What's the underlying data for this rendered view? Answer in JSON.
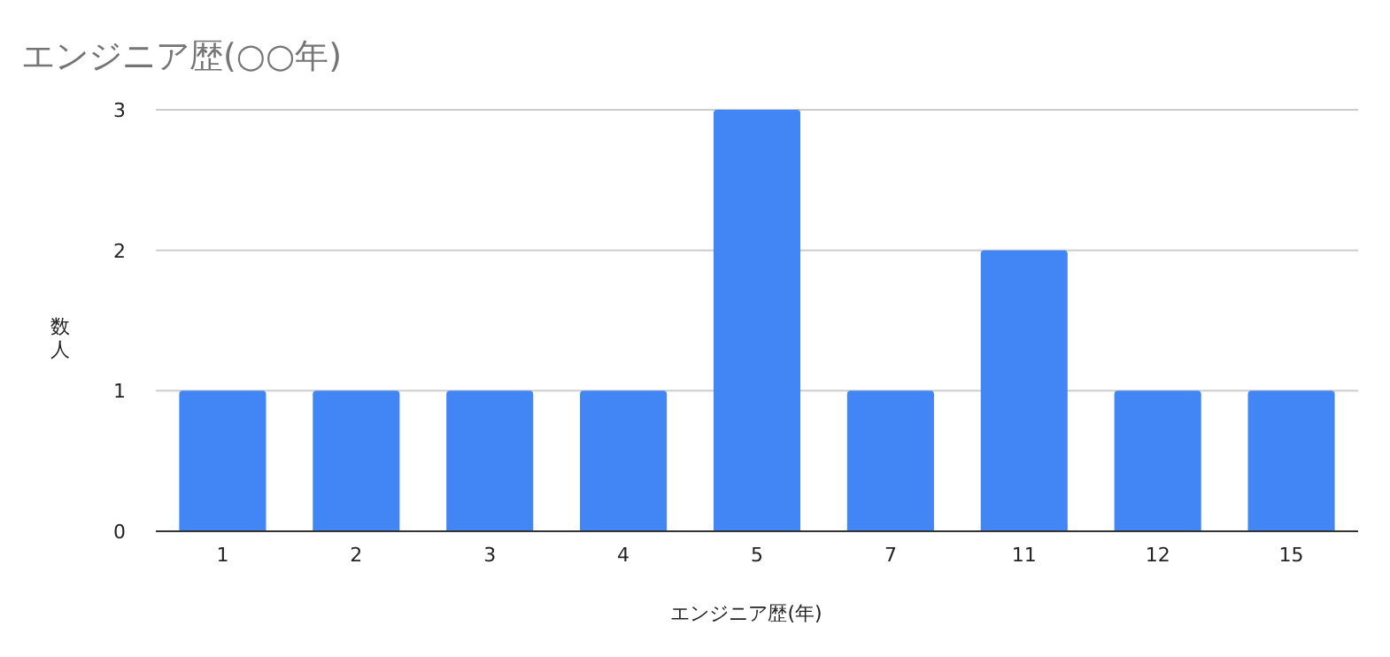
{
  "chart_data": {
    "type": "bar",
    "title": "エンジニア歴(○○年)",
    "xlabel": "エンジニア歴(年)",
    "ylabel": "数人",
    "categories": [
      "1",
      "2",
      "3",
      "4",
      "5",
      "7",
      "11",
      "12",
      "15"
    ],
    "values": [
      1,
      1,
      1,
      1,
      3,
      1,
      2,
      1,
      1
    ],
    "color": "#4285f4",
    "ylim": [
      0,
      3
    ],
    "yticks": [
      0,
      1,
      2,
      3
    ],
    "grid": "y"
  }
}
